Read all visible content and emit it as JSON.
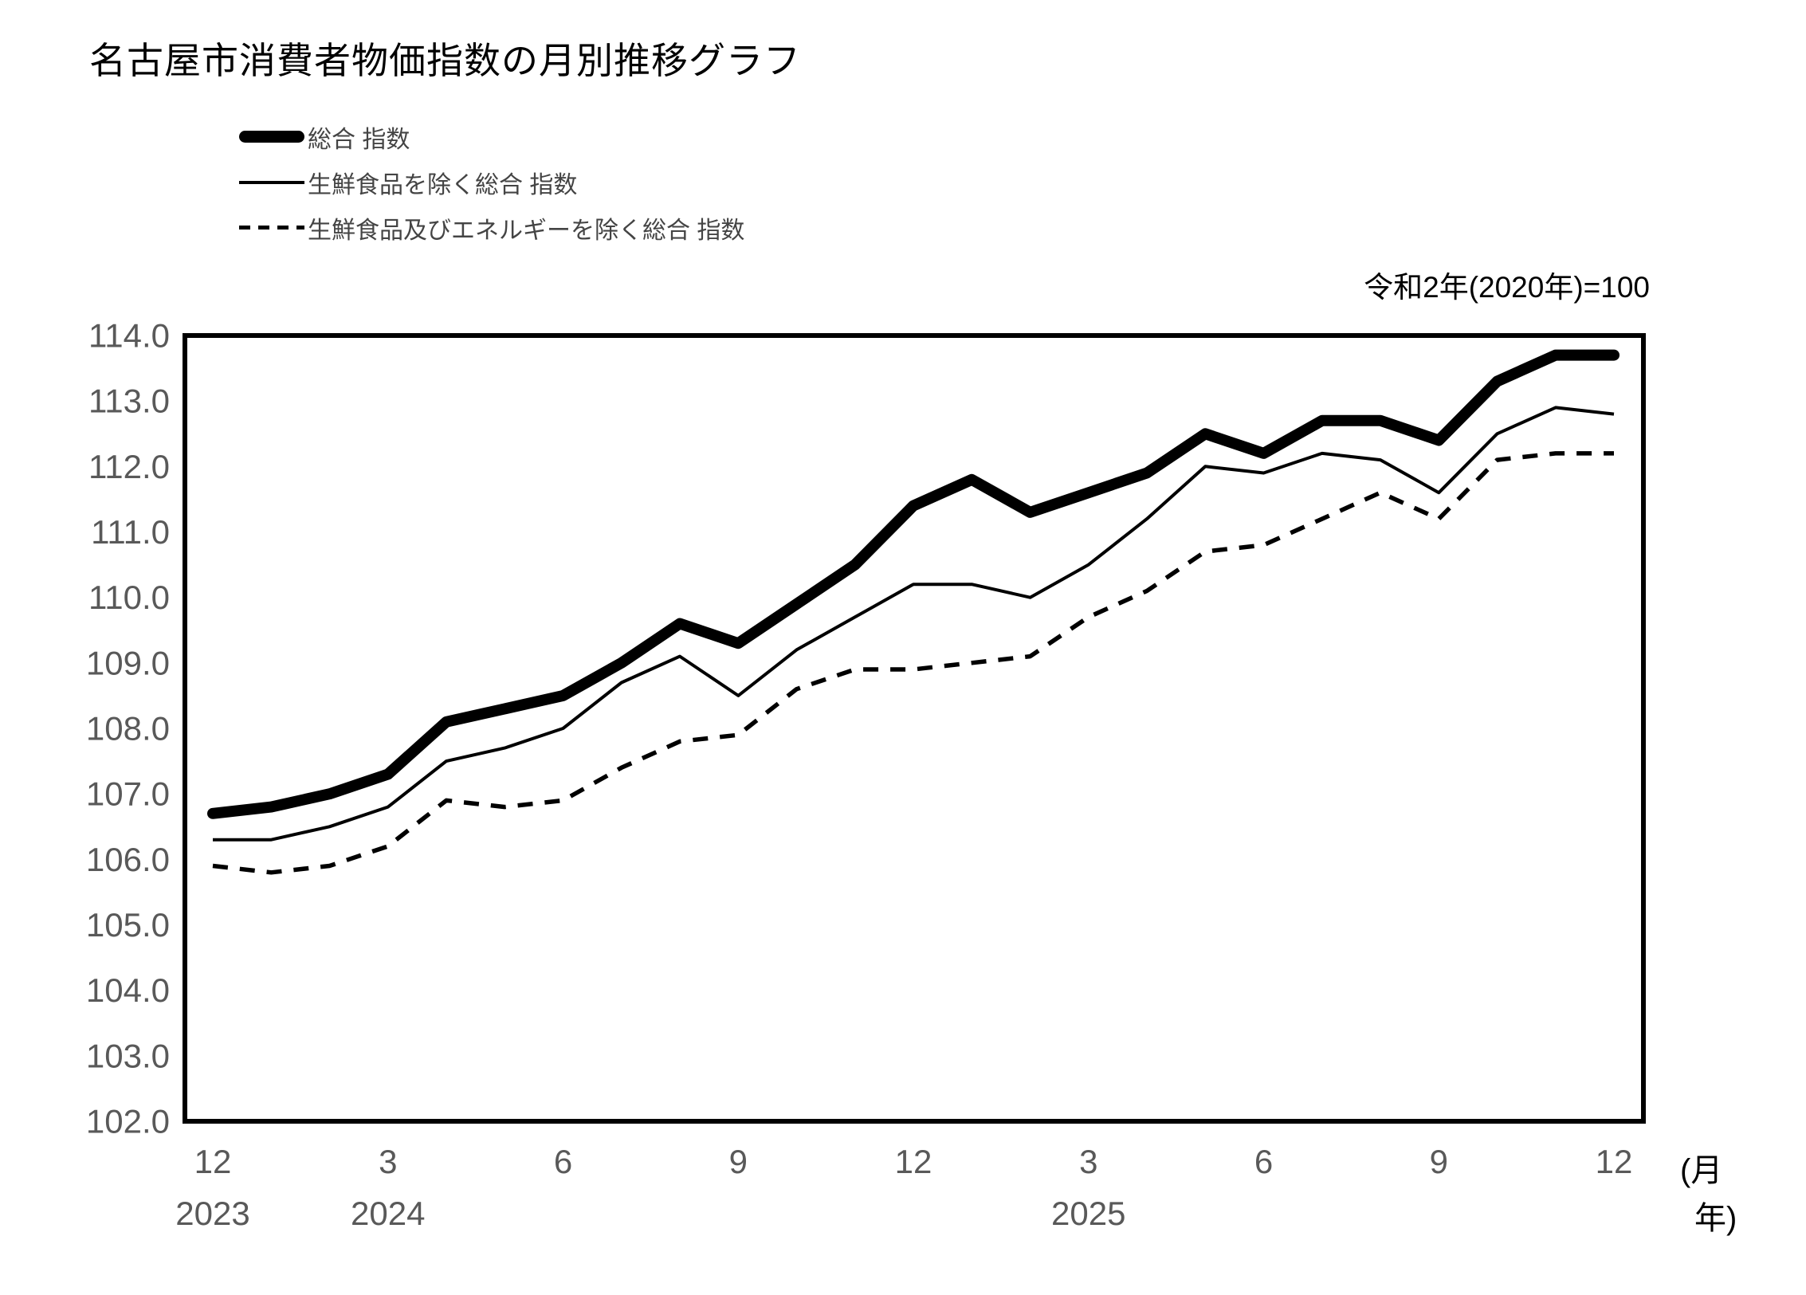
{
  "page": {
    "title": "名古屋市消費者物価指数の月別推移グラフ",
    "base_note": "令和2年(2020年)=100",
    "x_unit_month": "(月",
    "x_unit_year": "年)"
  },
  "chart_data": {
    "type": "line",
    "title": "名古屋市消費者物価指数の月別推移グラフ",
    "note": "令和2年(2020年)=100",
    "grid": false,
    "legend_position": "top-left",
    "ylim": [
      102.0,
      114.0
    ],
    "ytick_step": 1.0,
    "yticks": [
      "114.0",
      "113.0",
      "112.0",
      "111.0",
      "110.0",
      "109.0",
      "108.0",
      "107.0",
      "106.0",
      "105.0",
      "104.0",
      "103.0",
      "102.0"
    ],
    "x_months": [
      "2023-12",
      "2024-01",
      "2024-02",
      "2024-03",
      "2024-04",
      "2024-05",
      "2024-06",
      "2024-07",
      "2024-08",
      "2024-09",
      "2024-10",
      "2024-11",
      "2024-12",
      "2025-01",
      "2025-02",
      "2025-03",
      "2025-04",
      "2025-05",
      "2025-06",
      "2025-07",
      "2025-08",
      "2025-09",
      "2025-10",
      "2025-11",
      "2025-12"
    ],
    "xticks": [
      {
        "index": 0,
        "month": "12",
        "year": "2023"
      },
      {
        "index": 3,
        "month": "3",
        "year": "2024"
      },
      {
        "index": 6,
        "month": "6",
        "year": ""
      },
      {
        "index": 9,
        "month": "9",
        "year": ""
      },
      {
        "index": 12,
        "month": "12",
        "year": ""
      },
      {
        "index": 15,
        "month": "3",
        "year": "2025"
      },
      {
        "index": 18,
        "month": "6",
        "year": ""
      },
      {
        "index": 21,
        "month": "9",
        "year": ""
      },
      {
        "index": 24,
        "month": "12",
        "year": ""
      }
    ],
    "series": [
      {
        "name": "総合 指数",
        "line_style": "thick-solid",
        "values": [
          106.7,
          106.8,
          107.0,
          107.3,
          108.1,
          108.3,
          108.5,
          109.0,
          109.6,
          109.3,
          109.9,
          110.5,
          111.4,
          111.8,
          111.3,
          111.6,
          111.9,
          112.5,
          112.2,
          112.7,
          112.7,
          112.4,
          113.3,
          113.7,
          113.7
        ]
      },
      {
        "name": "生鮮食品を除く総合 指数",
        "line_style": "thin-solid",
        "values": [
          106.3,
          106.3,
          106.5,
          106.8,
          107.5,
          107.7,
          108.0,
          108.7,
          109.1,
          108.5,
          109.2,
          109.7,
          110.2,
          110.2,
          110.0,
          110.5,
          111.2,
          112.0,
          111.9,
          112.2,
          112.1,
          111.6,
          112.5,
          112.9,
          112.8
        ]
      },
      {
        "name": "生鮮食品及びエネルギーを除く総合 指数",
        "line_style": "dashed",
        "values": [
          105.9,
          105.8,
          105.9,
          106.2,
          106.9,
          106.8,
          106.9,
          107.4,
          107.8,
          107.9,
          108.6,
          108.9,
          108.9,
          109.0,
          109.1,
          109.7,
          110.1,
          110.7,
          110.8,
          111.2,
          111.6,
          111.2,
          112.1,
          112.2,
          112.2
        ]
      }
    ]
  }
}
